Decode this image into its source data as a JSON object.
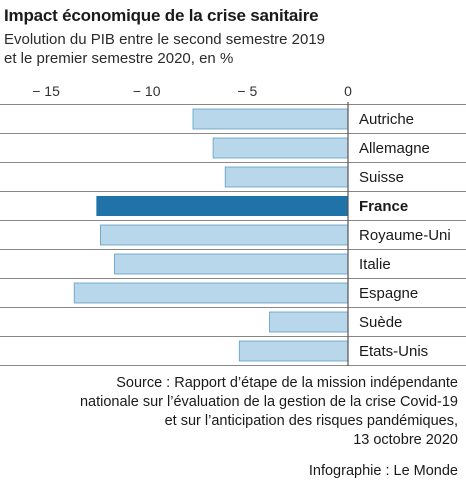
{
  "title": "Impact économique de la crise sanitaire",
  "subtitle_line1": "Evolution du PIB entre le second semestre 2019",
  "subtitle_line2": "et le premier semestre 2020, en %",
  "source_line1": "Source : Rapport d’étape de la mission indépendante",
  "source_line2": "nationale sur l’évaluation de la gestion de la crise Covid-19",
  "source_line3": "et sur l’anticipation des risques pandémiques,",
  "source_line4": "13 octobre 2020",
  "credit": "Infographie : Le Monde",
  "colors": {
    "bar": "#b9d7ea",
    "bar_border": "#5f9fc6",
    "highlight": "#1f73a8",
    "zero_line": "#555555",
    "separator": "#888888"
  },
  "chart_data": {
    "type": "bar",
    "orientation": "horizontal",
    "categories": [
      "Autriche",
      "Allemagne",
      "Suisse",
      "France",
      "Royaume-Uni",
      "Italie",
      "Espagne",
      "Suède",
      "Etats-Unis"
    ],
    "values": [
      -7.7,
      -6.7,
      -6.1,
      -12.5,
      -12.3,
      -11.6,
      -13.6,
      -3.9,
      -5.4
    ],
    "highlight": "France",
    "xlim": [
      -15.3,
      0
    ],
    "xticks": [
      -15,
      -10,
      -5,
      0
    ],
    "xtick_labels": [
      "− 15",
      "− 10",
      "− 5",
      "0"
    ],
    "grid": false
  }
}
